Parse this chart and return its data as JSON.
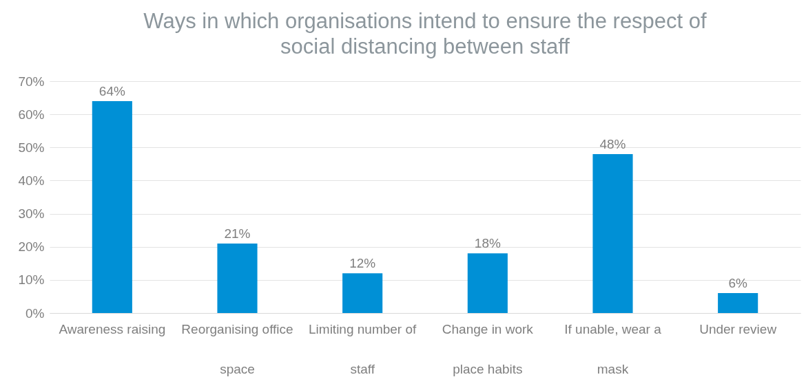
{
  "chart_data": {
    "type": "bar",
    "title": "Ways in which organisations intend to ensure the respect of social distancing between staff",
    "categories": [
      "Awareness raising",
      "Reorganising office space",
      "Limiting number of staff",
      "Change in work place habits",
      "If unable, wear a mask",
      "Under review"
    ],
    "values": [
      64,
      21,
      12,
      18,
      48,
      6
    ],
    "value_labels": [
      "64%",
      "21%",
      "12%",
      "18%",
      "48%",
      "6%"
    ],
    "color": "#0090d6",
    "ylim": [
      0,
      70
    ],
    "yticks": [
      {
        "value": 0,
        "label": "0%"
      },
      {
        "value": 10,
        "label": "10%"
      },
      {
        "value": 20,
        "label": "20%"
      },
      {
        "value": 30,
        "label": "30%"
      },
      {
        "value": 40,
        "label": "40%"
      },
      {
        "value": 50,
        "label": "50%"
      },
      {
        "value": 60,
        "label": "60%"
      },
      {
        "value": 70,
        "label": "70%"
      }
    ],
    "grid": "y"
  }
}
